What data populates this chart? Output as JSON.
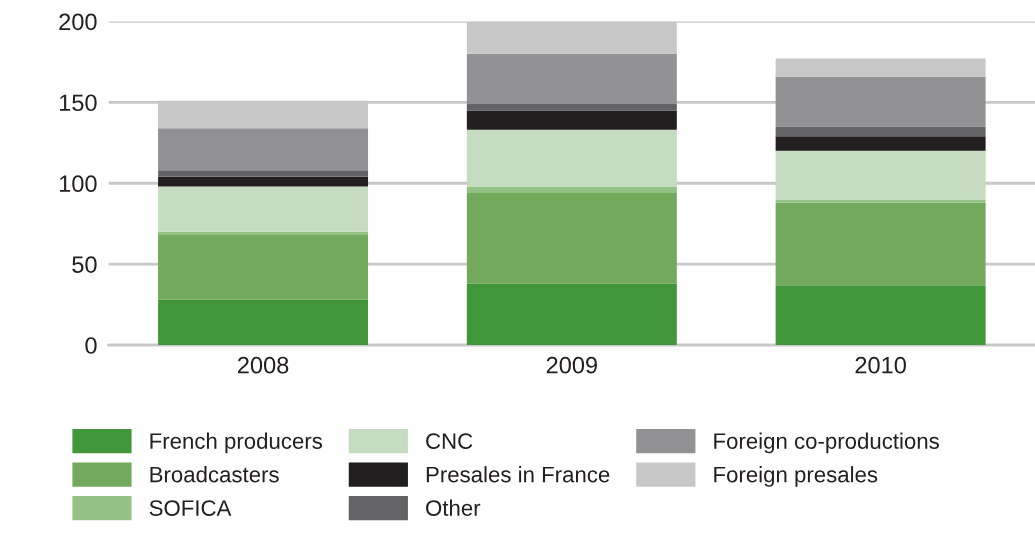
{
  "chart_data": {
    "type": "bar",
    "stacked": true,
    "categories": [
      "2008",
      "2009",
      "2010"
    ],
    "ylim": [
      0,
      200
    ],
    "yticks": [
      0,
      50,
      100,
      150,
      200
    ],
    "grid": "y",
    "legend": "bottom",
    "series": [
      {
        "name": "French producers",
        "color": "#41963a",
        "values": [
          28,
          38,
          37
        ]
      },
      {
        "name": "Broadcasters",
        "color": "#72a95d",
        "values": [
          40,
          56,
          51
        ]
      },
      {
        "name": "SOFICA",
        "color": "#94c184",
        "values": [
          2,
          4,
          2
        ]
      },
      {
        "name": "CNC",
        "color": "#c6dcc0",
        "values": [
          28,
          35,
          30
        ]
      },
      {
        "name": "Presales in France",
        "color": "#231f20",
        "values": [
          6,
          12,
          9
        ]
      },
      {
        "name": "Other",
        "color": "#636365",
        "values": [
          4,
          4,
          6
        ]
      },
      {
        "name": "Foreign co-productions",
        "color": "#929295",
        "values": [
          26,
          31,
          31
        ]
      },
      {
        "name": "Foreign presales",
        "color": "#c7c7c8",
        "values": [
          17,
          20,
          11
        ]
      }
    ]
  }
}
